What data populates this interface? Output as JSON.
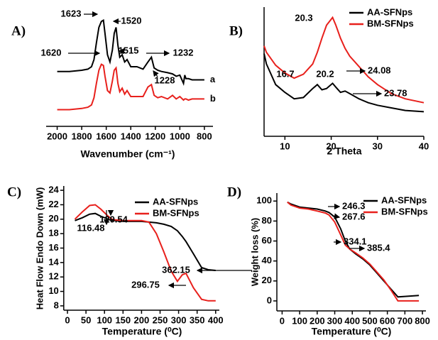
{
  "chart_data": [
    {
      "type": "line",
      "panel": "A)",
      "x_label": "Wavenumber (cm⁻¹)",
      "x": [
        2000,
        1900,
        1800,
        1750,
        1720,
        1700,
        1680,
        1660,
        1640,
        1623,
        1610,
        1590,
        1570,
        1550,
        1535,
        1520,
        1505,
        1490,
        1470,
        1450,
        1430,
        1400,
        1350,
        1300,
        1260,
        1232,
        1210,
        1180,
        1150,
        1100,
        1060,
        1030,
        1000,
        970,
        960,
        950,
        930,
        900,
        850,
        800
      ],
      "series": [
        {
          "name": "a",
          "color": "#000000",
          "values": [
            4.6,
            4.6,
            4.7,
            4.8,
            5.0,
            5.6,
            7.0,
            8.3,
            8.8,
            8.9,
            7.8,
            6.0,
            5.4,
            6.4,
            7.8,
            8.3,
            6.8,
            5.8,
            6.0,
            5.4,
            5.6,
            5.0,
            5.0,
            4.8,
            5.4,
            5.8,
            4.9,
            4.7,
            4.6,
            4.5,
            4.4,
            4.2,
            4.3,
            3.6,
            4.3,
            4.0,
            4.0,
            3.9,
            3.9,
            3.9
          ]
        },
        {
          "name": "b",
          "color": "#e8201c",
          "values": [
            1.4,
            1.4,
            1.5,
            1.6,
            1.8,
            2.4,
            3.6,
            4.7,
            5.2,
            5.1,
            4.2,
            3.0,
            2.8,
            3.8,
            4.7,
            4.9,
            3.6,
            2.9,
            3.2,
            2.7,
            3.0,
            2.5,
            2.5,
            2.5,
            3.3,
            3.5,
            2.6,
            2.4,
            2.5,
            2.3,
            2.6,
            2.3,
            2.5,
            2.2,
            2.3,
            2.3,
            2.2,
            2.3,
            2.3,
            2.3
          ]
        }
      ],
      "xlim": [
        2090,
        730
      ],
      "xticks": [
        2000,
        1800,
        1600,
        1400,
        1200,
        1000,
        800
      ],
      "ylim": [
        0,
        10
      ],
      "y_axis_line": false,
      "legend": "line-end",
      "annotations": [
        "1623",
        "1520",
        "1620",
        "1515",
        "1232",
        "1228"
      ]
    },
    {
      "type": "line",
      "panel": "B)",
      "x_label": "2 Theta",
      "x": [
        5.5,
        6,
        7,
        8,
        10,
        12,
        14,
        16,
        17,
        18,
        19,
        20.3,
        21,
        22,
        23,
        24,
        26,
        28,
        30,
        33,
        36,
        40
      ],
      "series": [
        {
          "name": "AA-SFNps",
          "color": "#000000",
          "values": [
            6.4,
            5.6,
            4.8,
            4.0,
            3.4,
            2.9,
            3.0,
            3.7,
            4.0,
            3.6,
            3.7,
            4.1,
            3.8,
            3.4,
            3.5,
            3.3,
            2.9,
            2.6,
            2.4,
            2.2,
            2.0,
            1.9
          ]
        },
        {
          "name": "BM-SFNps",
          "color": "#e8201c",
          "values": [
            7.0,
            6.5,
            6.0,
            5.5,
            4.9,
            4.5,
            4.8,
            5.6,
            6.5,
            7.6,
            8.6,
            9.2,
            8.6,
            7.6,
            6.8,
            6.2,
            5.4,
            4.6,
            4.0,
            3.3,
            2.9,
            2.6
          ]
        }
      ],
      "xlim": [
        5.5,
        40
      ],
      "xticks": [
        10,
        20,
        30,
        40
      ],
      "ylim": [
        0,
        10
      ],
      "y_axis_line": true,
      "legend": "upper right",
      "annotations": [
        "20.3",
        "16.7",
        "20.2",
        "24.08",
        "23.78"
      ]
    },
    {
      "type": "line",
      "panel": "C)",
      "x_label": "Temperature (⁰C)",
      "y_label": "Heat Flow Endo Down (mW)",
      "x": [
        20,
        40,
        60,
        75,
        90,
        110,
        120,
        129.54,
        150,
        200,
        220,
        240,
        260,
        280,
        296.75,
        310,
        320,
        340,
        362.15,
        380,
        400
      ],
      "series": [
        {
          "name": "AA-SFNps",
          "color": "#000000",
          "values": [
            19.8,
            20.2,
            20.7,
            20.8,
            20.4,
            20.0,
            19.8,
            19.8,
            19.7,
            19.7,
            19.6,
            19.5,
            19.3,
            19.0,
            18.4,
            17.6,
            16.9,
            15.2,
            13.3,
            13.0,
            12.9
          ]
        },
        {
          "name": "BM-SFNps",
          "color": "#e8201c",
          "values": [
            20.0,
            21.0,
            21.9,
            22.0,
            21.4,
            20.4,
            20.0,
            19.9,
            19.8,
            19.8,
            19.6,
            18.0,
            15.5,
            12.8,
            11.4,
            12.3,
            12.5,
            10.5,
            8.9,
            8.7,
            8.7
          ]
        }
      ],
      "xlim": [
        -10,
        410
      ],
      "xticks": [
        0,
        50,
        100,
        150,
        200,
        250,
        300,
        350,
        400
      ],
      "ylim": [
        7.4,
        24.6
      ],
      "yticks": [
        8,
        10,
        12,
        14,
        16,
        18,
        20,
        22,
        24
      ],
      "y_axis_line": true,
      "legend": "upper right",
      "annotations": [
        "129.54",
        "116.48",
        "362.15",
        "296.75"
      ]
    },
    {
      "type": "line",
      "panel": "D)",
      "x_label": "Temperature (⁰C)",
      "y_label": "Weight loss (%)",
      "x": [
        30,
        50,
        100,
        150,
        200,
        246.3,
        267.6,
        300,
        334.1,
        360,
        385.4,
        420,
        460,
        500,
        540,
        580,
        620,
        660,
        700,
        780
      ],
      "series": [
        {
          "name": "AA-SFNps",
          "color": "#000000",
          "values": [
            99,
            97,
            94,
            93,
            92,
            90,
            88.5,
            84,
            72,
            60,
            52,
            47,
            42,
            36,
            28,
            20,
            12,
            4,
            4.5,
            5.5
          ]
        },
        {
          "name": "BM-SFNps",
          "color": "#e8201c",
          "values": [
            99,
            96,
            93,
            92,
            90,
            88,
            86,
            79,
            66,
            56,
            52,
            48,
            43,
            37,
            29,
            21,
            11,
            0,
            0,
            0
          ]
        }
      ],
      "xlim": [
        -30,
        820
      ],
      "xticks": [
        0,
        100,
        200,
        300,
        400,
        500,
        600,
        700,
        800
      ],
      "ylim": [
        -10,
        108
      ],
      "yticks": [
        0,
        20,
        40,
        60,
        80,
        100
      ],
      "y_axis_line": true,
      "legend": "upper right",
      "annotations": [
        "246.3",
        "267.6",
        "334.1",
        "385.4"
      ]
    }
  ]
}
